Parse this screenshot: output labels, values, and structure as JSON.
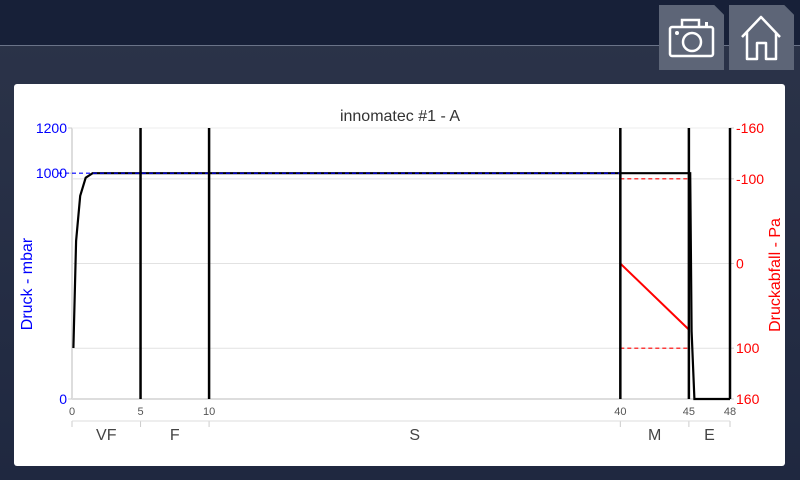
{
  "toolbar": {
    "camera_icon": "camera-icon",
    "home_icon": "home-icon"
  },
  "chart_data": {
    "type": "line",
    "title": "innomatec #1 - A",
    "ylabel_left": "Druck - mbar",
    "ylabel_right": "Druckabfall - Pa",
    "xlim": [
      0,
      48
    ],
    "ylim_left": [
      0,
      1200
    ],
    "ylim_right": [
      -160,
      160
    ],
    "x_ticks": [
      "0",
      "5",
      "10",
      "40",
      "45",
      "48"
    ],
    "x_tick_values": [
      0,
      5,
      10,
      40,
      45,
      48
    ],
    "left_ticks": [
      "0",
      "1000",
      "1200"
    ],
    "left_tick_values": [
      0,
      1000,
      1200
    ],
    "right_ticks": [
      "-160",
      "-100",
      "0",
      "100",
      "160"
    ],
    "right_tick_values": [
      -160,
      -100,
      0,
      100,
      160
    ],
    "phase_markers": [
      5,
      10,
      40,
      45
    ],
    "phases": [
      {
        "label": "VF",
        "from": 0,
        "to": 5
      },
      {
        "label": "F",
        "from": 5,
        "to": 10
      },
      {
        "label": "S",
        "from": 10,
        "to": 40
      },
      {
        "label": "M",
        "from": 40,
        "to": 45
      },
      {
        "label": "E",
        "from": 45,
        "to": 48
      }
    ],
    "series": [
      {
        "axis": "left",
        "color": "#000000",
        "points": [
          [
            0.1,
            226
          ],
          [
            0.3,
            700
          ],
          [
            0.6,
            900
          ],
          [
            1,
            980
          ],
          [
            1.5,
            1000
          ],
          [
            45.1,
            1000
          ],
          [
            45.2,
            300
          ],
          [
            45.4,
            0
          ],
          [
            48,
            0
          ]
        ]
      },
      {
        "axis": "left",
        "color": "#0000ff",
        "dashed": true,
        "points": [
          [
            0,
            1000
          ],
          [
            40,
            1000
          ]
        ]
      },
      {
        "axis": "right",
        "color": "#ff0000",
        "points": [
          [
            40,
            0
          ],
          [
            45,
            78
          ]
        ]
      },
      {
        "axis": "right",
        "color": "#ff0000",
        "dashed": true,
        "points": [
          [
            40,
            -100
          ],
          [
            45,
            -100
          ]
        ]
      },
      {
        "axis": "right",
        "color": "#ff0000",
        "dashed": true,
        "points": [
          [
            40,
            100
          ],
          [
            45,
            100
          ]
        ]
      }
    ],
    "colors": {
      "left_axis": "#0000ff",
      "right_axis": "#ff0000"
    },
    "grid": true
  }
}
